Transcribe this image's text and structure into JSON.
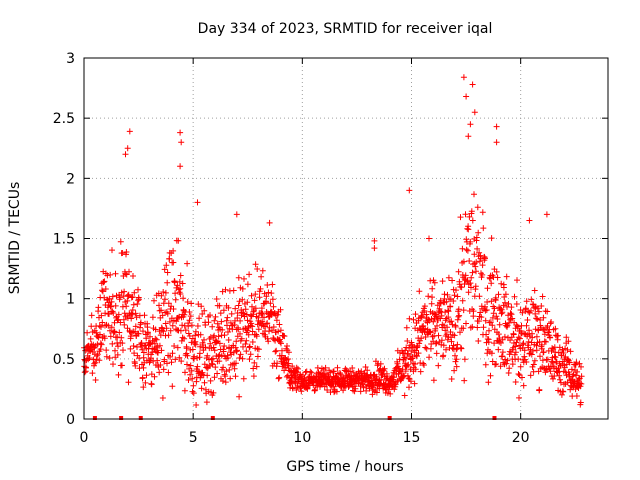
{
  "chart_data": {
    "type": "scatter",
    "title": "Day 334 of 2023, SRMTID for receiver iqal",
    "xlabel": "GPS time / hours",
    "ylabel": "SRMTID / TECUs",
    "xlim": [
      0,
      24
    ],
    "ylim": [
      0,
      3
    ],
    "xticks": [
      0,
      5,
      10,
      15,
      20
    ],
    "xtick_labels": [
      "0",
      "5",
      "10",
      "15",
      "20"
    ],
    "yticks": [
      0,
      0.5,
      1,
      1.5,
      2,
      2.5,
      3
    ],
    "ytick_labels": [
      "0",
      "0.5",
      "1",
      "1.5",
      "2",
      "2.5",
      "3"
    ],
    "grid": true,
    "marker": "+",
    "color": "#ff0000",
    "series": [
      {
        "name": "SRMTID",
        "profile": {
          "description": "approximate envelope of the dense scatter (hour, typical value, spread)",
          "hours": [
            0.0,
            0.5,
            1.0,
            1.5,
            2.0,
            2.5,
            3.0,
            3.5,
            4.0,
            4.5,
            5.0,
            5.5,
            6.0,
            6.5,
            7.0,
            7.5,
            8.0,
            8.5,
            9.0,
            9.5,
            10.0,
            11.0,
            12.0,
            13.0,
            13.5,
            14.0,
            14.5,
            15.0,
            15.5,
            16.0,
            16.5,
            17.0,
            17.5,
            18.0,
            18.5,
            19.0,
            19.5,
            20.0,
            20.5,
            21.0,
            21.5,
            22.0,
            22.5,
            22.8
          ],
          "center": [
            0.5,
            0.6,
            0.9,
            0.7,
            1.0,
            0.7,
            0.6,
            0.7,
            0.9,
            0.8,
            0.6,
            0.5,
            0.6,
            0.7,
            0.7,
            0.8,
            0.8,
            0.9,
            0.6,
            0.35,
            0.32,
            0.32,
            0.33,
            0.33,
            0.35,
            0.3,
            0.4,
            0.55,
            0.7,
            0.8,
            0.8,
            0.7,
            1.2,
            1.3,
            0.9,
            0.9,
            0.7,
            0.6,
            0.7,
            0.7,
            0.5,
            0.45,
            0.35,
            0.3
          ],
          "spread": [
            0.2,
            0.3,
            0.5,
            0.6,
            0.7,
            0.5,
            0.4,
            0.5,
            0.6,
            0.6,
            0.5,
            0.4,
            0.4,
            0.45,
            0.5,
            0.45,
            0.45,
            0.4,
            0.3,
            0.12,
            0.1,
            0.1,
            0.1,
            0.1,
            0.15,
            0.1,
            0.2,
            0.35,
            0.4,
            0.4,
            0.4,
            0.45,
            0.8,
            0.8,
            0.6,
            0.5,
            0.45,
            0.45,
            0.4,
            0.45,
            0.35,
            0.25,
            0.2,
            0.2
          ]
        },
        "peaks": [
          {
            "x": 2.1,
            "y": 2.39
          },
          {
            "x": 2.0,
            "y": 2.25
          },
          {
            "x": 1.9,
            "y": 2.2
          },
          {
            "x": 4.4,
            "y": 2.38
          },
          {
            "x": 4.45,
            "y": 2.3
          },
          {
            "x": 4.4,
            "y": 2.1
          },
          {
            "x": 5.2,
            "y": 1.8
          },
          {
            "x": 7.0,
            "y": 1.7
          },
          {
            "x": 8.5,
            "y": 1.63
          },
          {
            "x": 13.3,
            "y": 1.48
          },
          {
            "x": 13.3,
            "y": 1.42
          },
          {
            "x": 14.9,
            "y": 1.9
          },
          {
            "x": 15.8,
            "y": 1.5
          },
          {
            "x": 17.4,
            "y": 2.84
          },
          {
            "x": 17.8,
            "y": 2.78
          },
          {
            "x": 17.5,
            "y": 2.68
          },
          {
            "x": 17.9,
            "y": 2.55
          },
          {
            "x": 17.7,
            "y": 2.45
          },
          {
            "x": 17.6,
            "y": 2.35
          },
          {
            "x": 18.9,
            "y": 2.43
          },
          {
            "x": 18.9,
            "y": 2.3
          },
          {
            "x": 20.4,
            "y": 1.65
          },
          {
            "x": 21.2,
            "y": 1.7
          }
        ],
        "zero_markers_hours": [
          0.5,
          1.7,
          2.6,
          5.9,
          14.0,
          18.8
        ]
      }
    ]
  }
}
